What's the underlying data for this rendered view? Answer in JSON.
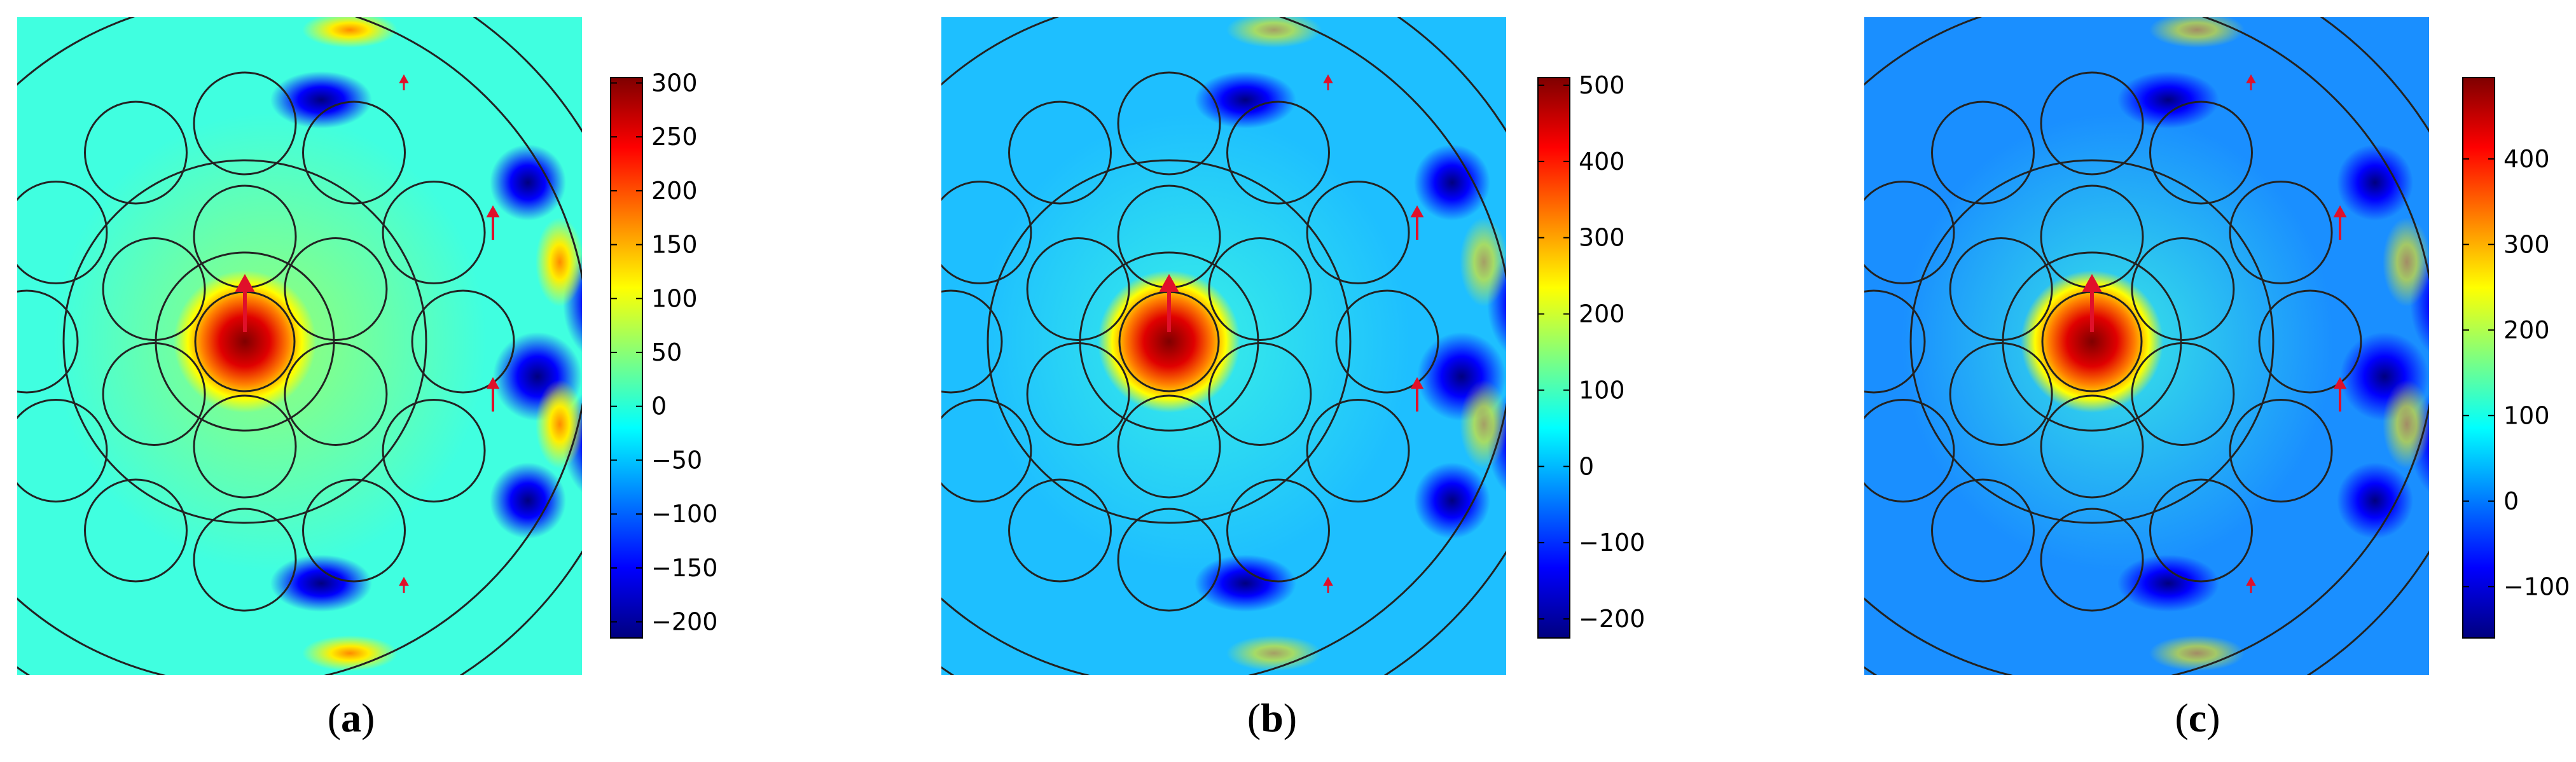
{
  "panels": [
    {
      "id": "a",
      "caption_open": "(",
      "caption_letter": "a",
      "caption_close": ")",
      "colorbar": {
        "min": -215,
        "max": 305,
        "ticks": [
          "300",
          "250",
          "200",
          "150",
          "100",
          "50",
          "0",
          "−50",
          "−100",
          "−150",
          "−200"
        ],
        "tick_values": [
          300,
          250,
          200,
          150,
          100,
          50,
          0,
          -50,
          -100,
          -150,
          -200
        ]
      },
      "background_color": "#40ffe0"
    },
    {
      "id": "b",
      "caption_open": "(",
      "caption_letter": "b",
      "caption_close": ")",
      "colorbar": {
        "min": -225,
        "max": 510,
        "ticks": [
          "500",
          "400",
          "300",
          "200",
          "100",
          "0",
          "−100",
          "−200"
        ],
        "tick_values": [
          500,
          400,
          300,
          200,
          100,
          0,
          -100,
          -200
        ]
      },
      "background_color": "#1ebfff"
    },
    {
      "id": "c",
      "caption_open": "(",
      "caption_letter": "c",
      "caption_close": ")",
      "colorbar": {
        "min": -160,
        "max": 495,
        "ticks": [
          "400",
          "300",
          "200",
          "100",
          "0",
          "−100"
        ],
        "tick_values": [
          400,
          300,
          200,
          100,
          0,
          -100
        ]
      },
      "background_color": "#1a8fff"
    }
  ],
  "colors": {
    "jet": [
      "#00007f",
      "#0000ff",
      "#007fff",
      "#00ffff",
      "#7fff7f",
      "#ffff00",
      "#ff7f00",
      "#ff0000",
      "#7f0000"
    ],
    "outline": "#222222",
    "arrow": "#e0102a"
  }
}
